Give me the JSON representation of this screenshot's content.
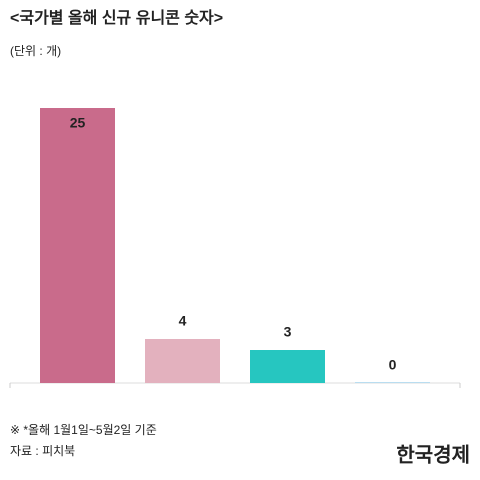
{
  "chart_data": {
    "type": "bar",
    "title": "<국가별 올해 신규 유니콘 숫자>",
    "subtitle": "(단위 : 개)",
    "categories": [
      null,
      null,
      null,
      null
    ],
    "values": [
      25,
      4,
      3,
      0
    ],
    "colors": [
      "#c96b8b",
      "#e3b1be",
      "#26c6c0",
      "#b9ddf0"
    ],
    "ylim": [
      0,
      25
    ],
    "footnote": "※ *올해 1월1일~5월2일 기준",
    "source": "자료 : 피치북",
    "logo": "한국경제"
  }
}
